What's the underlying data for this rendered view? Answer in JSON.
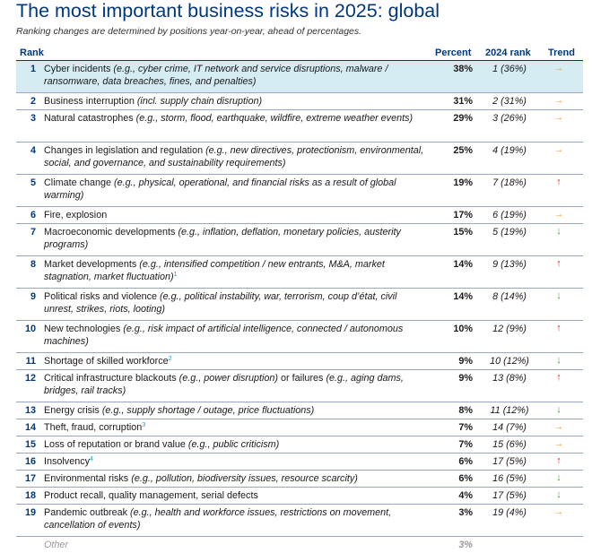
{
  "title": "The most important business risks in 2025: global",
  "subtitle": "Ranking changes are determined by positions year-on-year, ahead of percentages.",
  "headers": {
    "rank": "Rank",
    "percent": "Percent",
    "prev_rank": "2024 rank",
    "trend": "Trend"
  },
  "trend_colors": {
    "same": "#f0a21c",
    "up": "#dc1f2d",
    "down": "#4a9a3a"
  },
  "rows": [
    {
      "rank": "1",
      "name": "Cyber incidents",
      "detail": "(e.g., cyber crime, IT network and service disruptions, malware / ransomware, data breaches, fines, and penalties)",
      "percent": "38%",
      "prev": "1 (36%)",
      "trend": "→",
      "trend_dir": "same"
    },
    {
      "rank": "2",
      "name": "Business interruption",
      "detail": "(incl. supply chain disruption)",
      "percent": "31%",
      "prev": "2 (31%)",
      "trend": "→",
      "trend_dir": "same"
    },
    {
      "rank": "3",
      "name": "Natural catastrophes",
      "detail": "(e.g., storm, flood, earthquake, wildfire, extreme weather events)",
      "percent": "29%",
      "prev": "3 (26%)",
      "trend": "→",
      "trend_dir": "same"
    },
    {
      "rank": "4",
      "name": "Changes in legislation and regulation",
      "detail": "(e.g., new directives, protectionism, environmental, social, and governance, and sustainability requirements)",
      "percent": "25%",
      "prev": "4 (19%)",
      "trend": "→",
      "trend_dir": "same"
    },
    {
      "rank": "5",
      "name": "Climate change",
      "detail": "(e.g., physical, operational, and financial risks as a result of global warming)",
      "percent": "19%",
      "prev": "7 (18%)",
      "trend": "↑",
      "trend_dir": "up"
    },
    {
      "rank": "6",
      "name": "Fire, explosion",
      "detail": "",
      "percent": "17%",
      "prev": "6 (19%)",
      "trend": "→",
      "trend_dir": "same"
    },
    {
      "rank": "7",
      "name": "Macroeconomic developments",
      "detail": "(e.g., inflation, deflation, monetary policies, austerity programs)",
      "percent": "15%",
      "prev": "5 (19%)",
      "trend": "↓",
      "trend_dir": "down"
    },
    {
      "rank": "8",
      "name": "Market developments",
      "detail": "(e.g., intensified competition / new entrants, M&A, market stagnation, market fluctuation)",
      "sup": "1",
      "percent": "14%",
      "prev": "9 (13%)",
      "trend": "↑",
      "trend_dir": "up"
    },
    {
      "rank": "9",
      "name": "Political risks and violence",
      "detail": "(e.g., political instability, war, terrorism, coup d’état, civil unrest, strikes, riots, looting)",
      "percent": "14%",
      "prev": "8 (14%)",
      "trend": "↓",
      "trend_dir": "down"
    },
    {
      "rank": "10",
      "name": "New technologies",
      "detail": "(e.g., risk impact of artificial intelligence, connected / autonomous machines)",
      "percent": "10%",
      "prev": "12 (9%)",
      "trend": "↑",
      "trend_dir": "up"
    },
    {
      "rank": "11",
      "name": "Shortage of skilled workforce",
      "detail": "",
      "sup": "2",
      "percent": "9%",
      "prev": "10 (12%)",
      "trend": "↓",
      "trend_dir": "down"
    },
    {
      "rank": "12",
      "name": "Critical infrastructure blackouts",
      "detail": "(e.g., power disruption)",
      "name2": "or failures",
      "detail2": "(e.g., aging dams, bridges, rail tracks)",
      "percent": "9%",
      "prev": "13 (8%)",
      "trend": "↑",
      "trend_dir": "up"
    },
    {
      "rank": "13",
      "name": "Energy crisis",
      "detail": "(e.g., supply shortage / outage, price fluctuations)",
      "percent": "8%",
      "prev": "11 (12%)",
      "trend": "↓",
      "trend_dir": "down"
    },
    {
      "rank": "14",
      "name": "Theft, fraud, corruption",
      "detail": "",
      "sup": "3",
      "percent": "7%",
      "prev": "14 (7%)",
      "trend": "→",
      "trend_dir": "same"
    },
    {
      "rank": "15",
      "name": "Loss of reputation or brand value",
      "detail": "(e.g., public criticism)",
      "percent": "7%",
      "prev": "15 (6%)",
      "trend": "→",
      "trend_dir": "same"
    },
    {
      "rank": "16",
      "name": "Insolvency",
      "detail": "",
      "sup": "4",
      "percent": "6%",
      "prev": "17 (5%)",
      "trend": "↑",
      "trend_dir": "up"
    },
    {
      "rank": "17",
      "name": "Environmental risks",
      "detail": "(e.g., pollution, biodiversity issues, resource scarcity)",
      "percent": "6%",
      "prev": "16 (5%)",
      "trend": "↓",
      "trend_dir": "down"
    },
    {
      "rank": "18",
      "name": "Product recall, quality management, serial defects",
      "detail": "",
      "percent": "4%",
      "prev": "17 (5%)",
      "trend": "↓",
      "trend_dir": "down"
    },
    {
      "rank": "19",
      "name": "Pandemic outbreak",
      "detail": "(e.g., health and workforce issues, restrictions on movement, cancellation of events)",
      "percent": "3%",
      "prev": "19 (4%)",
      "trend": "→",
      "trend_dir": "same"
    }
  ],
  "other": {
    "label": "Other",
    "percent": "3%"
  }
}
